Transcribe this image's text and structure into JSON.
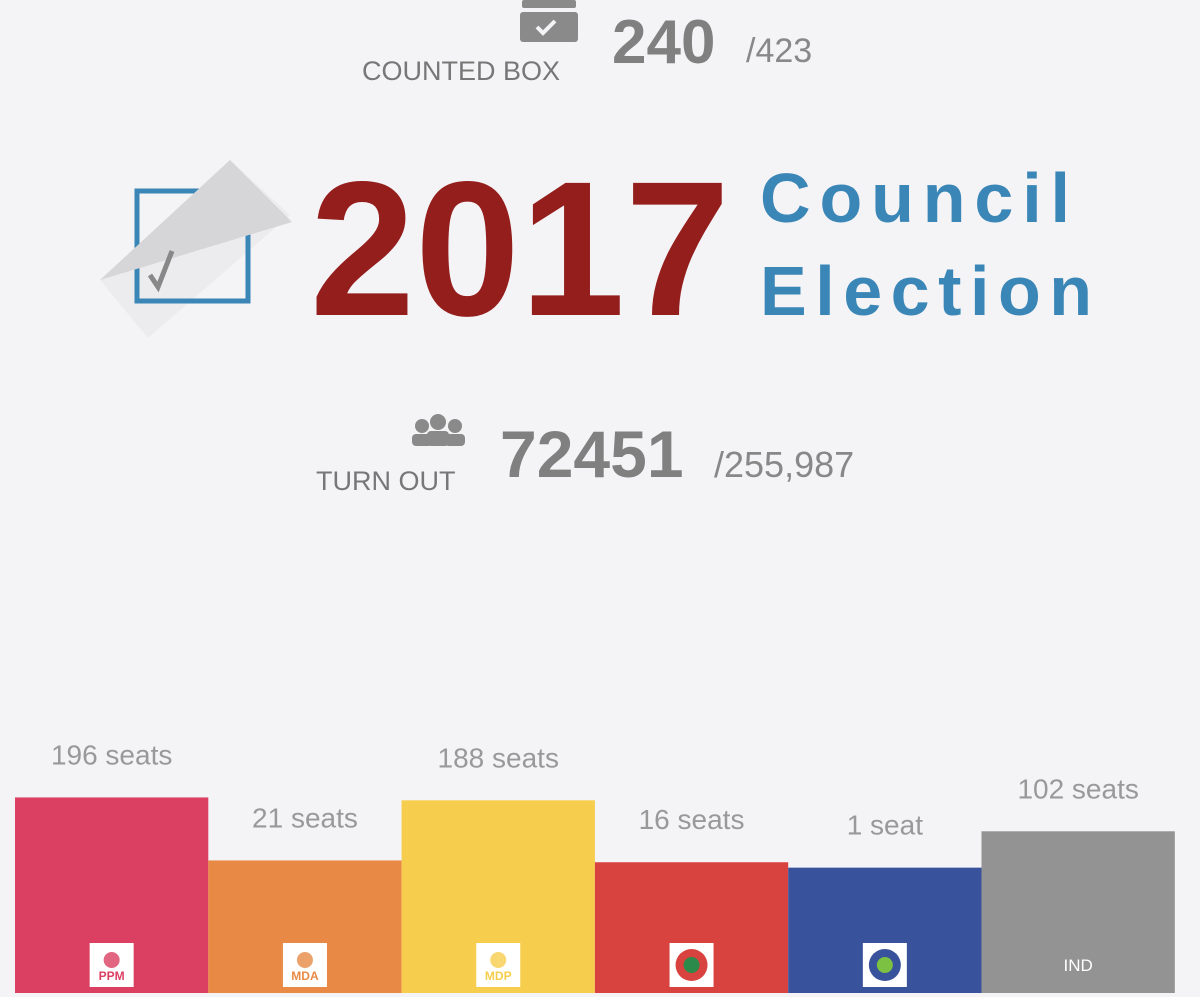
{
  "header": {
    "counted_label": "COUNTED BOX",
    "counted_value": 240,
    "counted_total": "/423",
    "year": "2017",
    "title_line1": "Council",
    "title_line2": "Election",
    "turnout_label": "TURN OUT",
    "turnout_value": 72451,
    "turnout_total": "/255,987"
  },
  "chart_data": {
    "type": "bar",
    "categories": [
      "PPM",
      "MDA",
      "MDP",
      null,
      null,
      "IND"
    ],
    "values": [
      196,
      21,
      188,
      16,
      1,
      102
    ],
    "value_labels": [
      "196 seats",
      "21 seats",
      "188 seats",
      "16 seats",
      "1 seat",
      "102 seats"
    ],
    "colors": [
      "#db3f62",
      "#e88a45",
      "#f6cd4c",
      "#d9433f",
      "#38539b",
      "#939393"
    ]
  }
}
